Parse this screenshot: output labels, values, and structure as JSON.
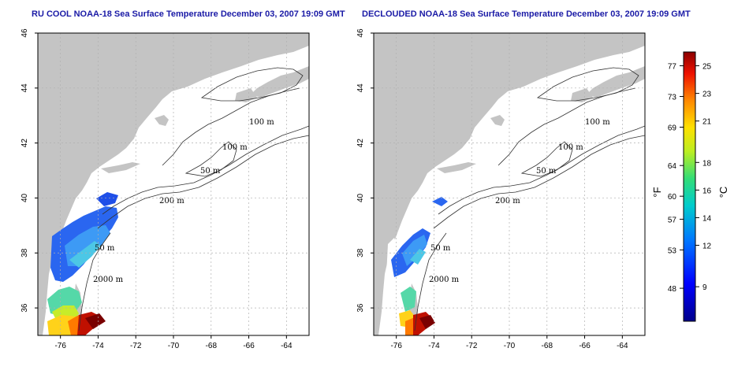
{
  "chart_data": [
    {
      "type": "heatmap",
      "title": "RU COOL NOAA-18 Sea Surface Temperature December 03, 2007 19:09 GMT",
      "x_ticks": [
        -76,
        -74,
        -72,
        -70,
        -68,
        -66,
        -64
      ],
      "y_ticks": [
        36,
        38,
        40,
        42,
        44,
        46
      ],
      "xlim": [
        -77.2,
        -62.8
      ],
      "ylim": [
        35,
        46
      ],
      "grid": true,
      "contour_labels": [
        "100 m",
        "100 m",
        "50 m",
        "200 m",
        "50 m",
        "2000 m"
      ]
    },
    {
      "type": "heatmap",
      "title": "DECLOUDED NOAA-18 Sea Surface Temperature December 03, 2007 19:09 GMT",
      "x_ticks": [
        -76,
        -74,
        -72,
        -70,
        -68,
        -66,
        -64
      ],
      "y_ticks": [
        36,
        38,
        40,
        42,
        44,
        46
      ],
      "xlim": [
        -77.2,
        -62.8
      ],
      "ylim": [
        35,
        46
      ],
      "grid": true,
      "contour_labels": [
        "100 m",
        "100 m",
        "50 m",
        "200 m",
        "50 m",
        "2000 m"
      ]
    }
  ],
  "colorbar": {
    "fahrenheit_ticks": [
      48,
      53,
      57,
      60,
      64,
      69,
      73,
      77
    ],
    "celsius_ticks": [
      9,
      12,
      14,
      16,
      18,
      21,
      23,
      25
    ],
    "fahrenheit_label": "°F",
    "celsius_label": "°C",
    "range_c": [
      6.5,
      26
    ]
  },
  "colors": {
    "land": "#c4c4c4",
    "ocean": "#ffffff",
    "grid": "#b0b0b0",
    "title": "#1a1aa6"
  }
}
